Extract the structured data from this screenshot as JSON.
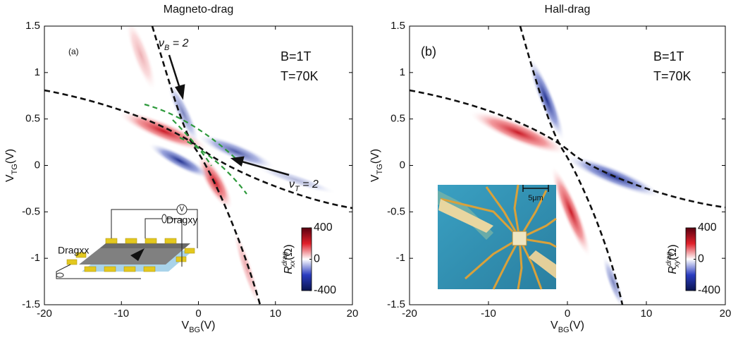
{
  "chart_data": [
    {
      "type": "heatmap",
      "title": "Magneto-drag",
      "xlabel": [
        "V",
        "BG",
        "(V)"
      ],
      "ylabel": [
        "V",
        "TG",
        "(V)"
      ],
      "xlim": [
        -20,
        20
      ],
      "xticks": [
        -20,
        -10,
        0,
        10,
        20
      ],
      "ylim": [
        -1.5,
        1.5
      ],
      "yticks": [
        -1.5,
        -1,
        -0.5,
        0,
        0.5,
        1,
        1.5
      ],
      "colorbar": {
        "lim": [
          -400,
          400
        ],
        "ticks": [
          400,
          0,
          -400
        ],
        "label": [
          "R",
          "drag",
          "xx",
          "(Ω)"
        ]
      },
      "annotations": {
        "panel": "(a)",
        "field": "B=1T",
        "temperature": "T=70K",
        "nu_b": [
          "ν",
          "B",
          " = 2"
        ],
        "nu_t": [
          "ν",
          "T",
          " = 2"
        ],
        "dragxy": "Dragxy",
        "dragxx": "Dragxx",
        "voltmeter": "V"
      }
    },
    {
      "type": "heatmap",
      "title": "Hall-drag",
      "xlabel": [
        "V",
        "BG",
        "(V)"
      ],
      "ylabel": [
        "V",
        "TG",
        "(V)"
      ],
      "xlim": [
        -20,
        20
      ],
      "xticks": [
        -20,
        -10,
        0,
        10,
        20
      ],
      "ylim": [
        -1.5,
        1.5
      ],
      "yticks": [
        -1.5,
        -1,
        -0.5,
        0,
        0.5,
        1,
        1.5
      ],
      "colorbar": {
        "lim": [
          -400,
          400
        ],
        "ticks": [
          400,
          0,
          -400
        ],
        "label": [
          "R",
          "drag",
          "xy",
          "(Ω)"
        ]
      },
      "annotations": {
        "panel": "(b)",
        "field": "B=1T",
        "temperature": "T=70K",
        "scalebar": "5μm"
      }
    }
  ]
}
